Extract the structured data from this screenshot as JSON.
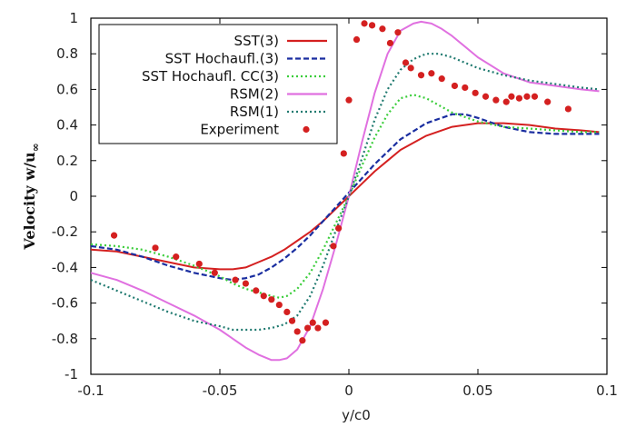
{
  "chart_data": {
    "type": "line",
    "xlabel": "y/c0",
    "ylabel": "Velocity w/u",
    "ylabel_subscript": "∞",
    "xlim": [
      -0.1,
      0.1
    ],
    "ylim": [
      -1,
      1
    ],
    "xticks": [
      -0.1,
      -0.05,
      0,
      0.05,
      0.1
    ],
    "xtick_labels": [
      "-0.1",
      "-0.05",
      "0",
      "0.05",
      "0.1"
    ],
    "yticks": [
      -1,
      -0.8,
      -0.6,
      -0.4,
      -0.2,
      0,
      0.2,
      0.4,
      0.6,
      0.8,
      1
    ],
    "ytick_labels": [
      "-1",
      "-0.8",
      "-0.6",
      "-0.4",
      "-0.2",
      "0",
      "0.2",
      "0.4",
      "0.6",
      "0.8",
      "1"
    ],
    "grid": false,
    "legend_position": "top-left",
    "series": [
      {
        "name": "SST(3)",
        "color": "#d42020",
        "style": "solid",
        "x": [
          -0.1,
          -0.09,
          -0.08,
          -0.07,
          -0.06,
          -0.05,
          -0.045,
          -0.04,
          -0.035,
          -0.03,
          -0.025,
          -0.02,
          -0.015,
          -0.01,
          -0.005,
          0,
          0.005,
          0.01,
          0.015,
          0.02,
          0.03,
          0.04,
          0.045,
          0.05,
          0.06,
          0.07,
          0.08,
          0.09,
          0.097
        ],
        "y": [
          -0.3,
          -0.31,
          -0.34,
          -0.37,
          -0.4,
          -0.41,
          -0.41,
          -0.4,
          -0.37,
          -0.34,
          -0.3,
          -0.25,
          -0.2,
          -0.14,
          -0.07,
          0,
          0.07,
          0.14,
          0.2,
          0.26,
          0.34,
          0.39,
          0.4,
          0.41,
          0.41,
          0.4,
          0.38,
          0.37,
          0.36
        ]
      },
      {
        "name": "SST Hochaufl.(3)",
        "color": "#1a2ea0",
        "style": "dashed",
        "x": [
          -0.1,
          -0.09,
          -0.08,
          -0.07,
          -0.06,
          -0.05,
          -0.045,
          -0.04,
          -0.035,
          -0.03,
          -0.025,
          -0.02,
          -0.015,
          -0.01,
          -0.005,
          0,
          0.005,
          0.01,
          0.015,
          0.02,
          0.03,
          0.04,
          0.045,
          0.05,
          0.06,
          0.07,
          0.08,
          0.09,
          0.097
        ],
        "y": [
          -0.28,
          -0.3,
          -0.34,
          -0.39,
          -0.43,
          -0.46,
          -0.47,
          -0.46,
          -0.44,
          -0.4,
          -0.35,
          -0.29,
          -0.22,
          -0.14,
          -0.06,
          0.02,
          0.1,
          0.18,
          0.25,
          0.32,
          0.41,
          0.46,
          0.46,
          0.44,
          0.39,
          0.36,
          0.35,
          0.35,
          0.35
        ]
      },
      {
        "name": "SST Hochaufl. CC(3)",
        "color": "#3acd3a",
        "style": "dotted",
        "x": [
          -0.1,
          -0.09,
          -0.08,
          -0.07,
          -0.06,
          -0.05,
          -0.045,
          -0.04,
          -0.035,
          -0.03,
          -0.027,
          -0.024,
          -0.02,
          -0.015,
          -0.01,
          -0.005,
          0,
          0.005,
          0.01,
          0.015,
          0.02,
          0.025,
          0.03,
          0.035,
          0.04,
          0.05,
          0.06,
          0.07,
          0.08,
          0.09,
          0.097
        ],
        "y": [
          -0.27,
          -0.28,
          -0.3,
          -0.34,
          -0.39,
          -0.45,
          -0.49,
          -0.52,
          -0.54,
          -0.56,
          -0.57,
          -0.56,
          -0.52,
          -0.43,
          -0.3,
          -0.15,
          0,
          0.17,
          0.33,
          0.46,
          0.55,
          0.57,
          0.55,
          0.51,
          0.47,
          0.42,
          0.39,
          0.38,
          0.37,
          0.36,
          0.36
        ]
      },
      {
        "name": "RSM(2)",
        "color": "#e070e0",
        "style": "solid",
        "x": [
          -0.1,
          -0.09,
          -0.08,
          -0.07,
          -0.06,
          -0.05,
          -0.045,
          -0.04,
          -0.035,
          -0.03,
          -0.027,
          -0.024,
          -0.02,
          -0.015,
          -0.01,
          -0.005,
          0,
          0.005,
          0.01,
          0.015,
          0.02,
          0.025,
          0.028,
          0.032,
          0.036,
          0.04,
          0.05,
          0.06,
          0.07,
          0.08,
          0.09,
          0.097
        ],
        "y": [
          -0.43,
          -0.47,
          -0.53,
          -0.6,
          -0.67,
          -0.75,
          -0.8,
          -0.85,
          -0.89,
          -0.92,
          -0.92,
          -0.91,
          -0.86,
          -0.73,
          -0.52,
          -0.27,
          0,
          0.3,
          0.58,
          0.8,
          0.93,
          0.97,
          0.98,
          0.97,
          0.94,
          0.9,
          0.78,
          0.69,
          0.64,
          0.62,
          0.6,
          0.59
        ]
      },
      {
        "name": "RSM(1)",
        "color": "#207a70",
        "style": "dotted",
        "x": [
          -0.1,
          -0.09,
          -0.08,
          -0.07,
          -0.06,
          -0.05,
          -0.045,
          -0.04,
          -0.035,
          -0.03,
          -0.025,
          -0.02,
          -0.015,
          -0.01,
          -0.005,
          0,
          0.005,
          0.01,
          0.015,
          0.02,
          0.025,
          0.03,
          0.035,
          0.04,
          0.05,
          0.06,
          0.07,
          0.08,
          0.09,
          0.097
        ],
        "y": [
          -0.47,
          -0.53,
          -0.59,
          -0.65,
          -0.7,
          -0.73,
          -0.75,
          -0.75,
          -0.75,
          -0.74,
          -0.72,
          -0.67,
          -0.56,
          -0.39,
          -0.19,
          0,
          0.21,
          0.43,
          0.6,
          0.71,
          0.77,
          0.8,
          0.8,
          0.78,
          0.72,
          0.68,
          0.65,
          0.63,
          0.61,
          0.6
        ]
      },
      {
        "name": "Experiment",
        "color": "#d42020",
        "style": "markers",
        "x": [
          -0.091,
          -0.075,
          -0.067,
          -0.058,
          -0.052,
          -0.044,
          -0.04,
          -0.036,
          -0.033,
          -0.03,
          -0.027,
          -0.024,
          -0.022,
          -0.02,
          -0.018,
          -0.016,
          -0.014,
          -0.012,
          -0.009,
          -0.006,
          -0.004,
          -0.002,
          0.0,
          0.003,
          0.006,
          0.009,
          0.013,
          0.016,
          0.019,
          0.022,
          0.024,
          0.028,
          0.032,
          0.036,
          0.041,
          0.045,
          0.049,
          0.053,
          0.057,
          0.061,
          0.063,
          0.066,
          0.069,
          0.072,
          0.077,
          0.085
        ],
        "y": [
          -0.22,
          -0.29,
          -0.34,
          -0.38,
          -0.43,
          -0.47,
          -0.49,
          -0.53,
          -0.56,
          -0.58,
          -0.61,
          -0.65,
          -0.7,
          -0.76,
          -0.81,
          -0.74,
          -0.71,
          -0.74,
          -0.71,
          -0.28,
          -0.18,
          0.24,
          0.54,
          0.88,
          0.97,
          0.96,
          0.94,
          0.86,
          0.92,
          0.75,
          0.72,
          0.68,
          0.69,
          0.66,
          0.62,
          0.61,
          0.58,
          0.56,
          0.54,
          0.53,
          0.56,
          0.55,
          0.56,
          0.56,
          0.53,
          0.49
        ]
      }
    ]
  }
}
